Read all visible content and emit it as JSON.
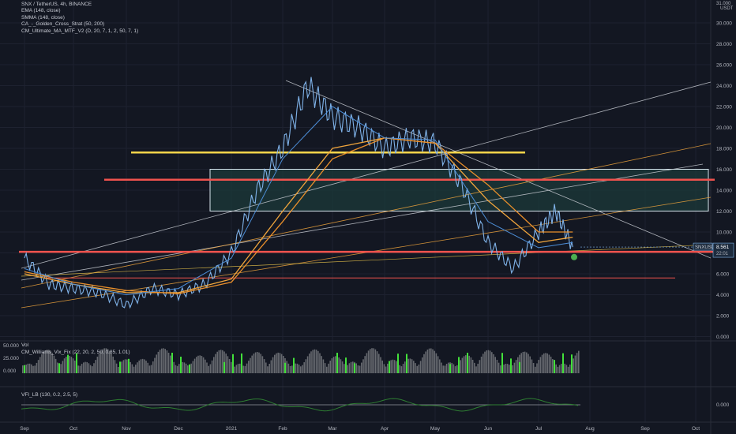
{
  "legend": {
    "title": "SNX / TetherUS, 4h, BINANCE",
    "indicators": [
      "EMA (148, close)",
      "SMMA (148, close)",
      "CA_-_Golden_Cross_Strat (50, 200)",
      "CM_Ultimate_MA_MTF_V2 (D, 20, 7, 1, 2, 50, 7, 1)"
    ]
  },
  "price_axis": {
    "currency_top": "31.000",
    "currency": "USDT",
    "current_symbol": "SNXUSDT",
    "current_price": "8.561",
    "countdown": "22:01"
  },
  "volume_pane": {
    "label": "Vol",
    "indicator": "CM_Williams_Vix_Fix (22, 20, 2, 50, 0.85, 1.01)"
  },
  "vfi_pane": {
    "label": "VFI_LB (130, 0.2, 2.5, 5)",
    "zero_label": "0.000"
  },
  "colors": {
    "background": "#131722",
    "price": "#7fb2e8",
    "ema": "#f0a53c",
    "smma": "#e98f2b",
    "ma_blue": "#4d8fd9",
    "red_level": "#f0524d",
    "yellow_level": "#f5d54b",
    "box_border": "#d8e6ee",
    "box_fill": "#1c3a3a",
    "vix_green": "#43e13b",
    "volume_gray": "#7d7f85",
    "vfi_green": "#2e7d32"
  },
  "chart_data": [
    {
      "type": "line",
      "title": "SNX / TetherUS, 4h, BINANCE",
      "x_ticks": [
        "Sep",
        "Oct",
        "Nov",
        "Dec",
        "2021",
        "Feb",
        "Mar",
        "Apr",
        "May",
        "Jun",
        "Jul",
        "Aug",
        "Sep",
        "Oct"
      ],
      "y_ticks": [
        "30.000",
        "28.000",
        "26.000",
        "24.000",
        "22.000",
        "20.000",
        "18.000",
        "16.000",
        "14.000",
        "12.000",
        "10.000",
        "8.000",
        "6.000",
        "4.000",
        "2.000",
        "0.000"
      ],
      "ylim": [
        0,
        31
      ],
      "series": [
        {
          "role": "price",
          "x": [
            "Sep",
            "Sep 15",
            "Oct",
            "Oct 15",
            "Nov",
            "Nov 15",
            "Dec",
            "Dec 15",
            "Jan",
            "Jan 15",
            "Feb",
            "Feb 15",
            "Mar",
            "Mar 15",
            "Apr",
            "Apr 15",
            "May",
            "May 15",
            "Jun",
            "Jun 15",
            "Jul",
            "Jul 10",
            "Jul 20"
          ],
          "values": [
            7.5,
            5.0,
            4.6,
            4.2,
            3.0,
            4.6,
            4.0,
            5.0,
            8.0,
            14.0,
            18.0,
            24.0,
            21.0,
            20.0,
            18.0,
            19.0,
            18.5,
            14.5,
            9.0,
            6.5,
            10.0,
            12.0,
            8.56
          ]
        },
        {
          "role": "ema",
          "x": [
            "Sep",
            "Oct",
            "Nov",
            "Dec",
            "Jan",
            "Feb",
            "Mar",
            "Apr",
            "May",
            "Jun",
            "Jul",
            "Jul 20"
          ],
          "values": [
            6.0,
            5.0,
            4.2,
            4.2,
            5.5,
            12.0,
            18.0,
            19.0,
            18.5,
            13.0,
            9.0,
            9.5
          ]
        },
        {
          "role": "smma",
          "x": [
            "Sep",
            "Oct",
            "Nov",
            "Dec",
            "Jan",
            "Feb",
            "Mar",
            "Apr",
            "May",
            "Jun",
            "Jul",
            "Jul 20"
          ],
          "values": [
            6.2,
            5.2,
            4.4,
            4.1,
            5.2,
            11.0,
            17.0,
            19.0,
            18.5,
            14.5,
            10.0,
            10.0
          ]
        },
        {
          "role": "ma_blue",
          "x": [
            "Sep",
            "Oct",
            "Nov",
            "Dec",
            "Jan",
            "Feb",
            "Mar",
            "Apr",
            "May",
            "Jun",
            "Jul",
            "Jul 20"
          ],
          "values": [
            6.5,
            5.0,
            4.0,
            4.6,
            7.5,
            17.0,
            22.0,
            19.0,
            18.8,
            11.0,
            8.5,
            9.0
          ]
        }
      ],
      "levels": [
        {
          "role": "red",
          "value": 15.0
        },
        {
          "role": "red",
          "value": 8.1
        },
        {
          "role": "red_thin",
          "value": 5.6
        },
        {
          "role": "yellow",
          "value": 17.6
        }
      ],
      "zone": {
        "top": 16.0,
        "bottom": 12.0
      }
    },
    {
      "type": "bar",
      "title": "Vol",
      "y_ticks": [
        "50.000",
        "25.000",
        "0.000"
      ]
    },
    {
      "type": "line",
      "title": "VFI_LB (130, 0.2, 2.5, 5)",
      "y_ticks": [
        "0.000"
      ]
    }
  ]
}
